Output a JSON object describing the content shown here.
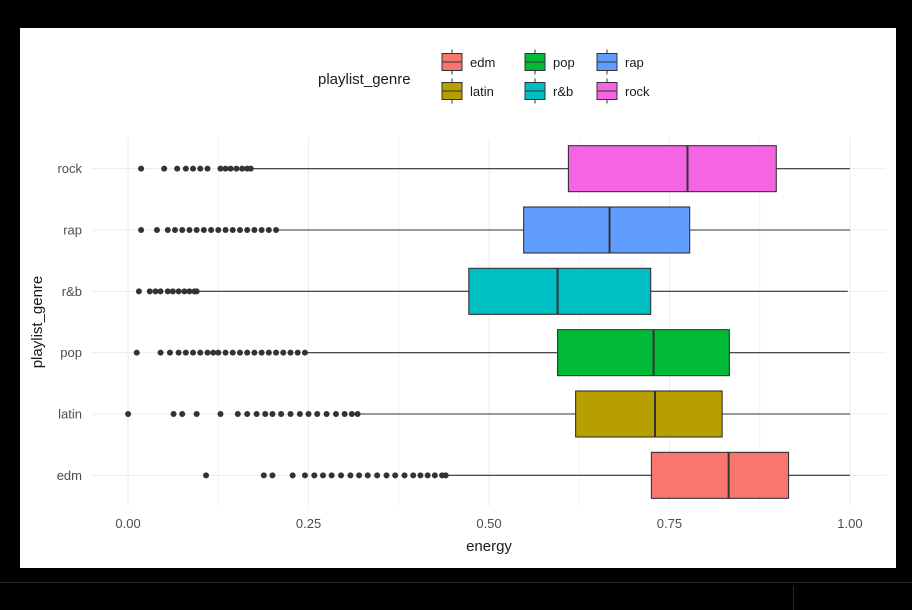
{
  "chart_data": {
    "type": "boxplot",
    "orientation": "horizontal",
    "xlabel": "energy",
    "ylabel": "playlist_genre",
    "xlim": [
      -0.05,
      1.05
    ],
    "x_ticks": [
      0.0,
      0.25,
      0.5,
      0.75,
      1.0
    ],
    "x_tick_labels": [
      "0.00",
      "0.25",
      "0.50",
      "0.75",
      "1.00"
    ],
    "grid": true,
    "legend": {
      "title": "playlist_genre",
      "placement": "top",
      "entries": [
        "edm",
        "latin",
        "pop",
        "r&b",
        "rap",
        "rock"
      ]
    },
    "categories": [
      "edm",
      "latin",
      "pop",
      "r&b",
      "rap",
      "rock"
    ],
    "series": [
      {
        "name": "edm",
        "color": "#F8766D",
        "whisker_low": 0.44,
        "q1": 0.725,
        "median": 0.832,
        "q3": 0.915,
        "whisker_high": 1.0,
        "outliers": [
          0.108,
          0.188,
          0.2,
          0.228,
          0.245,
          0.258,
          0.27,
          0.282,
          0.295,
          0.308,
          0.32,
          0.332,
          0.345,
          0.358,
          0.37,
          0.383,
          0.395,
          0.405,
          0.415,
          0.425,
          0.435,
          0.44
        ]
      },
      {
        "name": "latin",
        "color": "#B79F00",
        "whisker_low": 0.318,
        "q1": 0.62,
        "median": 0.73,
        "q3": 0.823,
        "whisker_high": 1.0,
        "outliers": [
          0.0,
          0.063,
          0.075,
          0.095,
          0.128,
          0.152,
          0.165,
          0.178,
          0.19,
          0.2,
          0.212,
          0.225,
          0.238,
          0.25,
          0.262,
          0.275,
          0.288,
          0.3,
          0.31,
          0.318
        ]
      },
      {
        "name": "pop",
        "color": "#00BA38",
        "whisker_low": 0.245,
        "q1": 0.595,
        "median": 0.728,
        "q3": 0.833,
        "whisker_high": 1.0,
        "outliers": [
          0.012,
          0.045,
          0.058,
          0.07,
          0.08,
          0.09,
          0.1,
          0.11,
          0.118,
          0.125,
          0.135,
          0.145,
          0.155,
          0.165,
          0.175,
          0.185,
          0.195,
          0.205,
          0.215,
          0.225,
          0.235,
          0.245
        ]
      },
      {
        "name": "r&b",
        "color": "#00BFC4",
        "whisker_low": 0.095,
        "q1": 0.472,
        "median": 0.595,
        "q3": 0.724,
        "whisker_high": 0.997,
        "outliers": [
          0.015,
          0.03,
          0.038,
          0.045,
          0.055,
          0.062,
          0.07,
          0.078,
          0.085,
          0.092,
          0.095
        ]
      },
      {
        "name": "rap",
        "color": "#619CFF",
        "whisker_low": 0.205,
        "q1": 0.548,
        "median": 0.667,
        "q3": 0.778,
        "whisker_high": 1.0,
        "outliers": [
          0.018,
          0.04,
          0.055,
          0.065,
          0.075,
          0.085,
          0.095,
          0.105,
          0.115,
          0.125,
          0.135,
          0.145,
          0.155,
          0.165,
          0.175,
          0.185,
          0.195,
          0.205
        ]
      },
      {
        "name": "rock",
        "color": "#F564E3",
        "whisker_low": 0.17,
        "q1": 0.61,
        "median": 0.775,
        "q3": 0.898,
        "whisker_high": 1.0,
        "outliers": [
          0.018,
          0.05,
          0.068,
          0.08,
          0.09,
          0.1,
          0.11,
          0.128,
          0.135,
          0.142,
          0.15,
          0.158,
          0.165,
          0.17
        ]
      }
    ]
  }
}
